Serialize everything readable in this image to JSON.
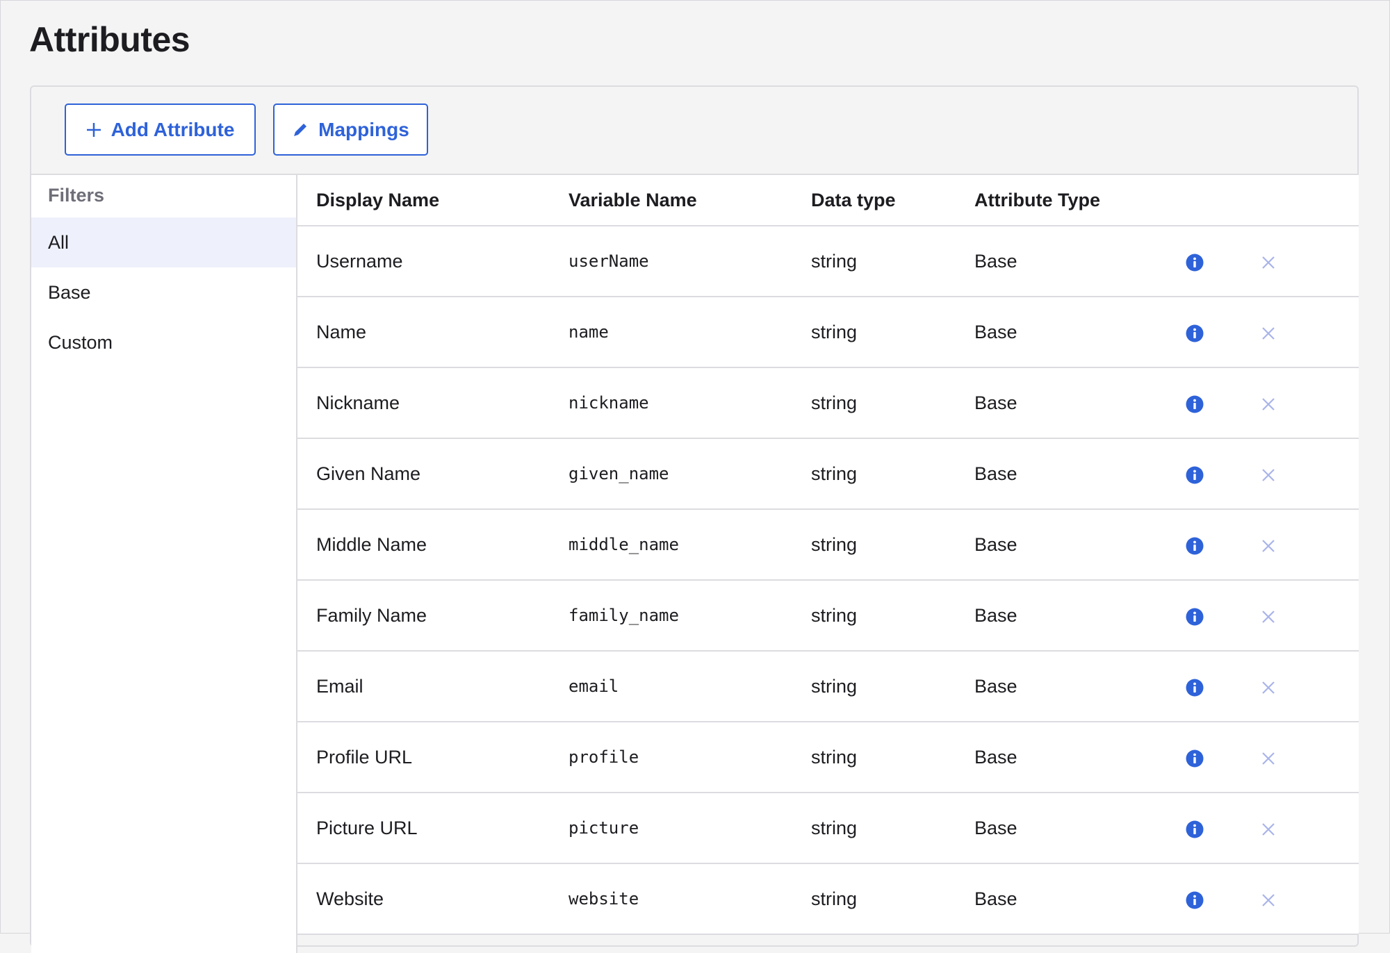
{
  "page": {
    "title": "Attributes"
  },
  "toolbar": {
    "add_label": "Add Attribute",
    "mappings_label": "Mappings"
  },
  "filters": {
    "heading": "Filters",
    "items": [
      "All",
      "Base",
      "Custom"
    ],
    "selected": "All"
  },
  "table": {
    "columns": [
      "Display Name",
      "Variable Name",
      "Data type",
      "Attribute Type"
    ],
    "rows": [
      {
        "display": "Username",
        "variable": "userName",
        "type": "string",
        "attr": "Base"
      },
      {
        "display": "Name",
        "variable": "name",
        "type": "string",
        "attr": "Base"
      },
      {
        "display": "Nickname",
        "variable": "nickname",
        "type": "string",
        "attr": "Base"
      },
      {
        "display": "Given Name",
        "variable": "given_name",
        "type": "string",
        "attr": "Base"
      },
      {
        "display": "Middle Name",
        "variable": "middle_name",
        "type": "string",
        "attr": "Base"
      },
      {
        "display": "Family Name",
        "variable": "family_name",
        "type": "string",
        "attr": "Base"
      },
      {
        "display": "Email",
        "variable": "email",
        "type": "string",
        "attr": "Base"
      },
      {
        "display": "Profile URL",
        "variable": "profile",
        "type": "string",
        "attr": "Base"
      },
      {
        "display": "Picture URL",
        "variable": "picture",
        "type": "string",
        "attr": "Base"
      },
      {
        "display": "Website",
        "variable": "website",
        "type": "string",
        "attr": "Base"
      }
    ]
  },
  "icons": {
    "add": "plus-icon",
    "mappings": "pencil-icon",
    "info": "info-icon",
    "remove": "close-icon"
  },
  "colors": {
    "accent": "#2e62d9",
    "remove_icon": "#a9b4ea",
    "selected_filter_bg": "#eef1fb"
  }
}
